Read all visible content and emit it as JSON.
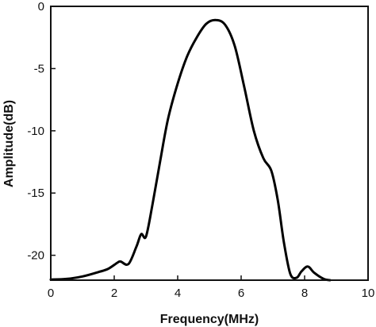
{
  "chart_data": {
    "type": "line",
    "xlabel": "Frequency(MHz)",
    "ylabel": "Amplitude(dB)",
    "xlim": [
      0,
      10
    ],
    "ylim": [
      -22,
      0
    ],
    "xticks": [
      0,
      2,
      4,
      6,
      8,
      10
    ],
    "yticks": [
      0,
      -5,
      -10,
      -15,
      -20
    ],
    "grid": false,
    "series": [
      {
        "color": "#000000",
        "x": [
          0.0,
          0.5,
          1.0,
          1.5,
          1.8,
          2.1,
          2.2,
          2.45,
          2.7,
          2.85,
          3.0,
          3.2,
          3.45,
          3.7,
          4.0,
          4.3,
          4.6,
          4.9,
          5.2,
          5.5,
          5.8,
          6.1,
          6.4,
          6.7,
          6.95,
          7.15,
          7.35,
          7.55,
          7.75,
          7.9,
          8.1,
          8.3,
          8.6,
          8.8
        ],
        "y": [
          -21.95,
          -21.9,
          -21.7,
          -21.35,
          -21.1,
          -20.6,
          -20.5,
          -20.7,
          -19.3,
          -18.3,
          -18.5,
          -16.0,
          -12.4,
          -9.0,
          -6.2,
          -4.0,
          -2.5,
          -1.4,
          -1.1,
          -1.5,
          -3.2,
          -6.5,
          -10.0,
          -12.2,
          -13.2,
          -15.5,
          -19.0,
          -21.5,
          -21.8,
          -21.3,
          -20.9,
          -21.4,
          -21.9,
          -22.0
        ]
      }
    ]
  }
}
